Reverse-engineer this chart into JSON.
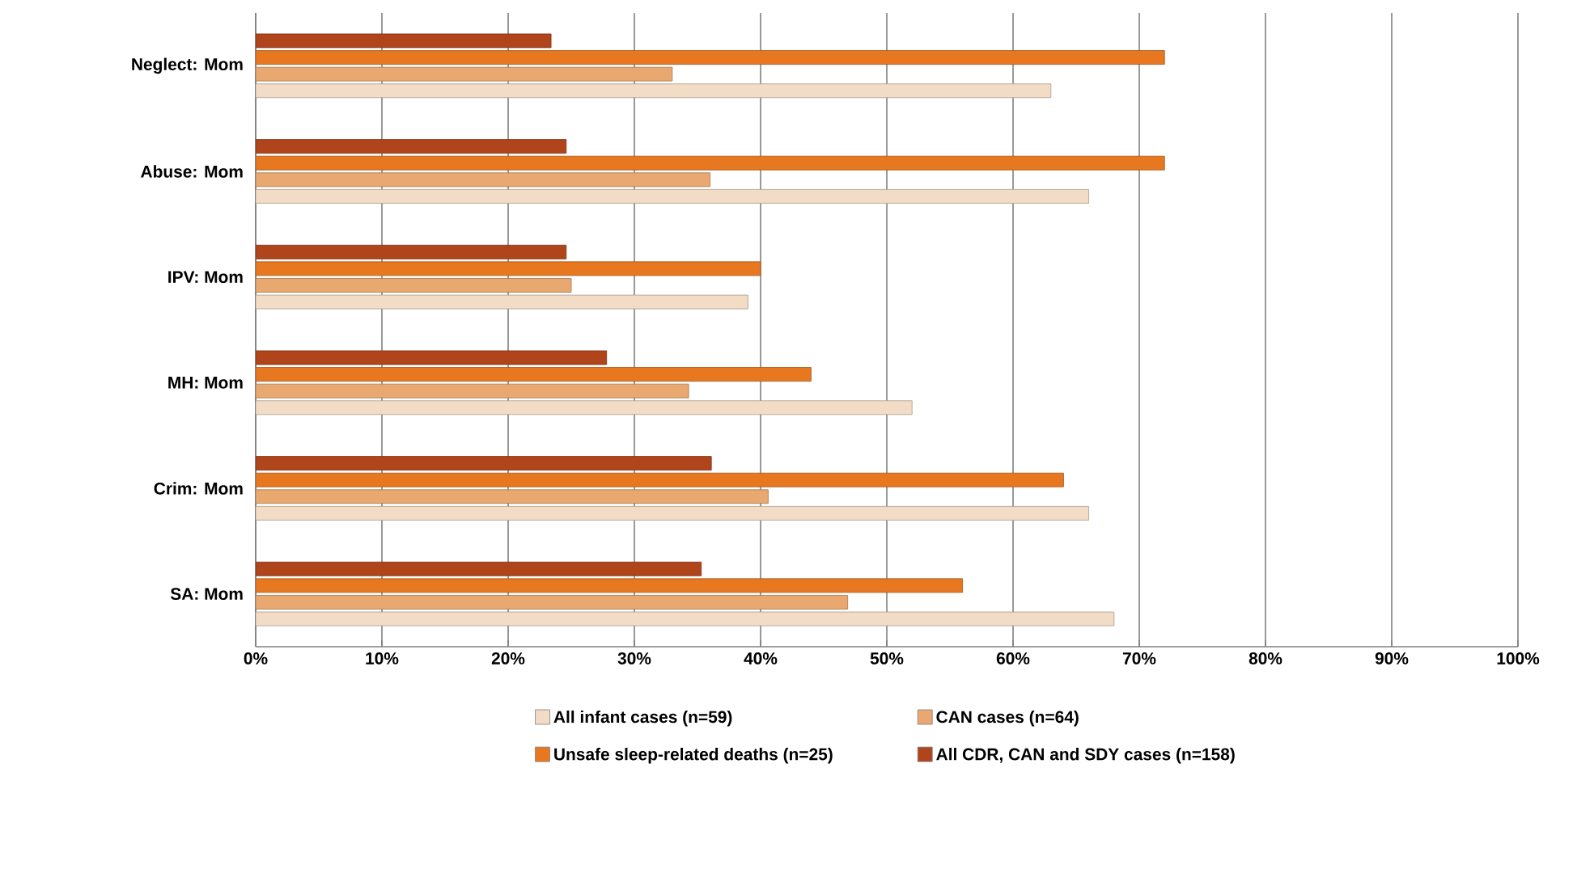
{
  "chart_data": {
    "type": "bar",
    "orientation": "horizontal",
    "categories": [
      "Neglect: Mom",
      "Abuse: Mom",
      "IPV: Mom",
      "MH: Mom",
      "Crim: Mom",
      "SA: Mom"
    ],
    "series": [
      {
        "name": "All infant cases (n=59)",
        "color": "#f2dcc6",
        "values": [
          63,
          66,
          39,
          52,
          66,
          68
        ]
      },
      {
        "name": "CAN cases (n=64)",
        "color": "#e8a870",
        "values": [
          33,
          36,
          25,
          34.3,
          40.6,
          46.9
        ]
      },
      {
        "name": "Unsafe sleep-related deaths (n=25)",
        "color": "#e87820",
        "values": [
          72,
          72,
          40,
          44,
          64,
          56
        ]
      },
      {
        "name": "All CDR, CAN and SDY cases (n=158)",
        "color": "#b0451c",
        "values": [
          23.4,
          24.6,
          24.6,
          27.8,
          36.1,
          35.3
        ]
      }
    ],
    "xlim": [
      0,
      100
    ],
    "xticks": [
      {
        "value": 0,
        "label": "0%"
      },
      {
        "value": 10,
        "label": "10%"
      },
      {
        "value": 20,
        "label": "20%"
      },
      {
        "value": 30,
        "label": "30%"
      },
      {
        "value": 40,
        "label": "40%"
      },
      {
        "value": 50,
        "label": "50%"
      },
      {
        "value": 60,
        "label": "60%"
      },
      {
        "value": 70,
        "label": "70%"
      },
      {
        "value": 80,
        "label": "80%"
      },
      {
        "value": 90,
        "label": "90%"
      },
      {
        "value": 100,
        "label": "100%"
      }
    ],
    "grid": "x",
    "legend": "bottom"
  }
}
